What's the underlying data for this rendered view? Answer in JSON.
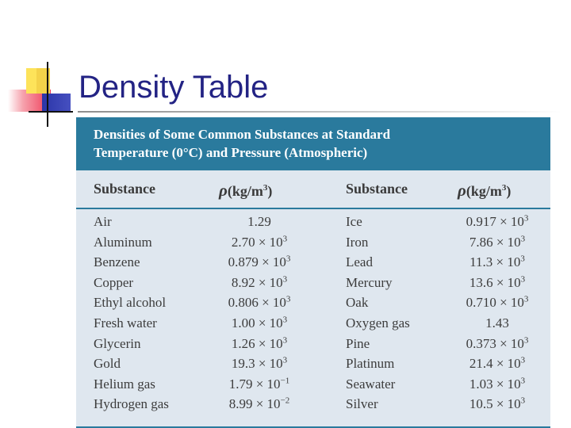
{
  "title": "Density Table",
  "table": {
    "caption_line1": "Densities of Some Common Substances at Standard",
    "caption_line2": "Temperature (0°C) and Pressure (Atmospheric)",
    "col_substance": "Substance",
    "col_density_symbol": "ρ",
    "col_density_unit": "(kg/m",
    "col_density_exp": "3",
    "col_density_close": ")",
    "rows": [
      {
        "name1": "Air",
        "mant1": "1.29",
        "exp1": "",
        "name2": "Ice",
        "mant2": "0.917 × 10",
        "exp2": "3"
      },
      {
        "name1": "Aluminum",
        "mant1": "2.70 × 10",
        "exp1": "3",
        "name2": "Iron",
        "mant2": "7.86 × 10",
        "exp2": "3"
      },
      {
        "name1": "Benzene",
        "mant1": "0.879 × 10",
        "exp1": "3",
        "name2": "Lead",
        "mant2": "11.3 × 10",
        "exp2": "3"
      },
      {
        "name1": "Copper",
        "mant1": "8.92 × 10",
        "exp1": "3",
        "name2": "Mercury",
        "mant2": "13.6 × 10",
        "exp2": "3"
      },
      {
        "name1": "Ethyl alcohol",
        "mant1": "0.806 × 10",
        "exp1": "3",
        "name2": "Oak",
        "mant2": "0.710 × 10",
        "exp2": "3"
      },
      {
        "name1": "Fresh water",
        "mant1": "1.00 × 10",
        "exp1": "3",
        "name2": "Oxygen gas",
        "mant2": "1.43",
        "exp2": ""
      },
      {
        "name1": "Glycerin",
        "mant1": "1.26 × 10",
        "exp1": "3",
        "name2": "Pine",
        "mant2": "0.373 × 10",
        "exp2": "3"
      },
      {
        "name1": "Gold",
        "mant1": "19.3 × 10",
        "exp1": "3",
        "name2": "Platinum",
        "mant2": "21.4 × 10",
        "exp2": "3"
      },
      {
        "name1": "Helium gas",
        "mant1": "1.79 × 10",
        "exp1": "−1",
        "name2": "Seawater",
        "mant2": "1.03 × 10",
        "exp2": "3"
      },
      {
        "name1": "Hydrogen gas",
        "mant1": "8.99 × 10",
        "exp1": "−2",
        "name2": "Silver",
        "mant2": "10.5 × 10",
        "exp2": "3"
      }
    ]
  }
}
